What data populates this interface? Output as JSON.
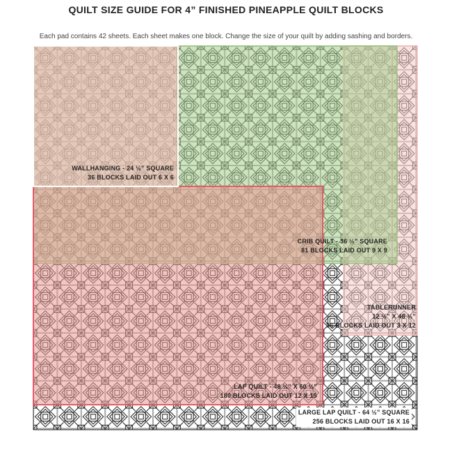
{
  "header": {
    "title": "QUILT SIZE GUIDE FOR 4” FINISHED PINEAPPLE QUILT BLOCKS",
    "subtitle": "Each pad contains 42 sheets.  Each sheet makes one block. Change the size of your quilt by adding sashing and borders."
  },
  "sizes": {
    "wallhanging": {
      "name": "WALLHANGING - 24 ½” SQUARE",
      "blocks": "36 BLOCKS LAID OUT 6 X 6",
      "color": "#f3b8b6"
    },
    "crib": {
      "name": "CRIB QUILT - 36 ½” SQUARE",
      "blocks": "81 BLOCKS LAID OUT 9 X 9",
      "color": "#a6cc8c"
    },
    "tablerunner": {
      "name": "TABLERUNNER",
      "dims": "12 ½” X 48 ½”",
      "blocks": "36 BLOCKS LAID OUT 3 X 12",
      "color": "#f6cbc8"
    },
    "lap": {
      "name": "LAP QUILT - 48 ½” X 60 ½”",
      "blocks": "180 BLOCKS LAID OUT 12 X 15",
      "color": "#e99993"
    },
    "large_lap": {
      "name": "LARGE LAP QUILT - 64 ½” SQUARE",
      "blocks": "256 BLOCKS LAID OUT 16 X 16"
    }
  }
}
